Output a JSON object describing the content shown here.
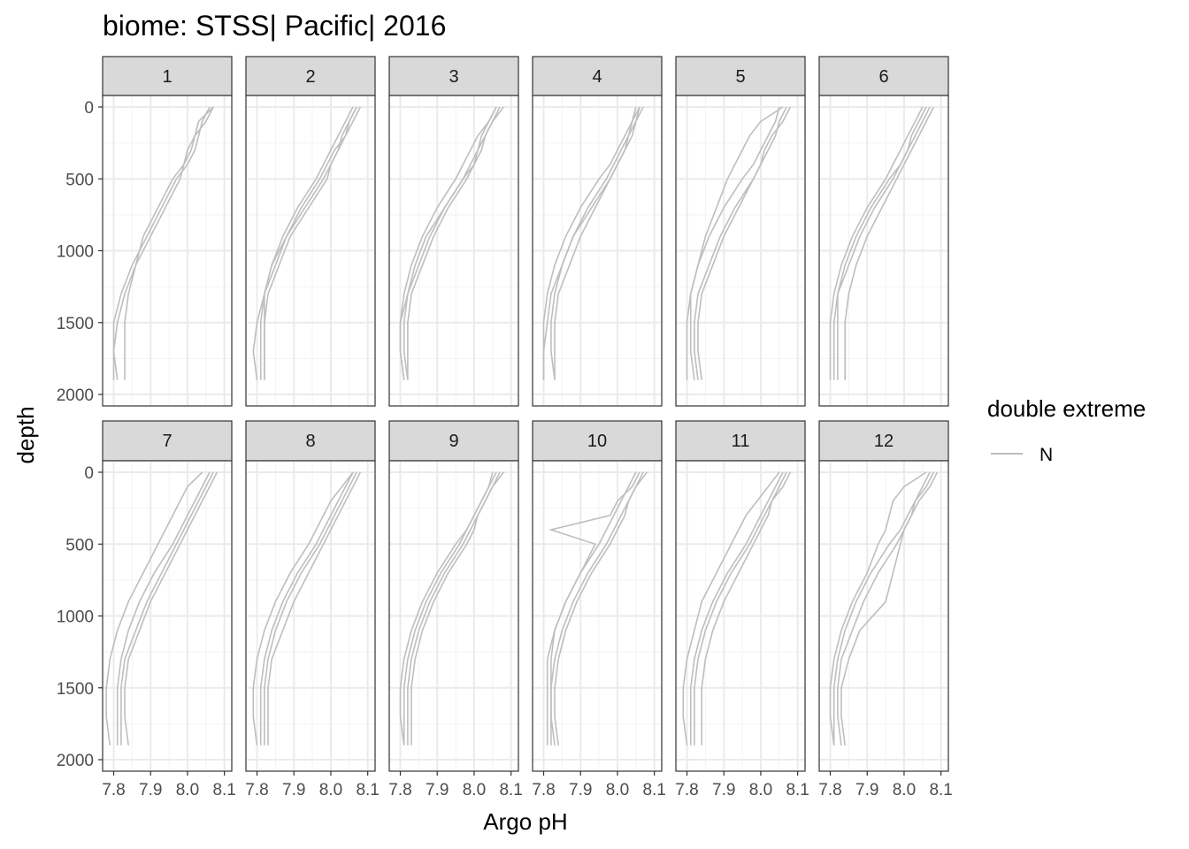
{
  "chart_data": {
    "type": "line",
    "title": "biome: STSS| Pacific| 2016",
    "xlabel": "Argo pH",
    "ylabel": "depth",
    "xlim": [
      7.77,
      8.12
    ],
    "ylim": [
      -80,
      2080
    ],
    "y_reversed": true,
    "x_ticks": [
      "7.8",
      "7.9",
      "8.0",
      "8.1"
    ],
    "x_tick_values": [
      7.8,
      7.9,
      8.0,
      8.1
    ],
    "y_ticks": [
      "0",
      "500",
      "1000",
      "1500",
      "2000"
    ],
    "y_tick_values": [
      0,
      500,
      1000,
      1500,
      2000
    ],
    "grid": true,
    "facet_by": "month",
    "facets": [
      "1",
      "2",
      "3",
      "4",
      "5",
      "6",
      "7",
      "8",
      "9",
      "10",
      "11",
      "12"
    ],
    "legend": {
      "title": "double extreme",
      "entries": [
        "N"
      ],
      "position": "right"
    },
    "colors": {
      "N": "#bebebe"
    },
    "series_note": "approximate profiles per facet; each line is one float profile",
    "profile_depths": [
      0,
      100,
      200,
      300,
      400,
      500,
      700,
      900,
      1100,
      1300,
      1500,
      1700,
      1900
    ],
    "panels": [
      {
        "facet": "1",
        "profiles": [
          [
            8.07,
            8.05,
            8.02,
            8.01,
            7.99,
            7.98,
            7.94,
            7.9,
            7.86,
            7.83,
            7.81,
            7.8,
            7.81
          ],
          [
            8.06,
            8.04,
            8.03,
            8.02,
            8.0,
            7.97,
            7.93,
            7.89,
            7.85,
            7.82,
            7.8,
            7.8,
            7.8
          ],
          [
            8.07,
            8.03,
            8.02,
            8.0,
            7.99,
            7.96,
            7.92,
            7.88,
            7.86,
            7.84,
            7.83,
            7.83,
            7.83
          ]
        ]
      },
      {
        "facet": "2",
        "profiles": [
          [
            8.07,
            8.05,
            8.04,
            8.02,
            8.0,
            7.98,
            7.93,
            7.88,
            7.85,
            7.82,
            7.8,
            7.79,
            7.8
          ],
          [
            8.08,
            8.06,
            8.04,
            8.01,
            7.99,
            7.97,
            7.92,
            7.88,
            7.84,
            7.82,
            7.81,
            7.81,
            7.81
          ],
          [
            8.06,
            8.04,
            8.02,
            8.0,
            7.98,
            7.96,
            7.91,
            7.87,
            7.84,
            7.82,
            7.82,
            7.82,
            7.82
          ],
          [
            8.07,
            8.05,
            8.03,
            8.02,
            8.0,
            7.99,
            7.94,
            7.89,
            7.86,
            7.83,
            7.82,
            7.82,
            7.82
          ]
        ]
      },
      {
        "facet": "3",
        "profiles": [
          [
            8.07,
            8.05,
            8.03,
            8.01,
            7.99,
            7.97,
            7.92,
            7.88,
            7.85,
            7.82,
            7.8,
            7.8,
            7.81
          ],
          [
            8.06,
            8.04,
            8.02,
            8.01,
            8.0,
            7.98,
            7.93,
            7.89,
            7.86,
            7.83,
            7.82,
            7.82,
            7.82
          ],
          [
            8.08,
            8.05,
            8.03,
            8.02,
            8.0,
            7.97,
            7.92,
            7.87,
            7.84,
            7.82,
            7.81,
            7.81,
            7.82
          ],
          [
            8.06,
            8.04,
            8.01,
            7.99,
            7.97,
            7.95,
            7.9,
            7.86,
            7.83,
            7.81,
            7.8,
            7.8,
            7.81
          ]
        ]
      },
      {
        "facet": "4",
        "profiles": [
          [
            8.06,
            8.04,
            8.03,
            8.01,
            7.99,
            7.97,
            7.92,
            7.88,
            7.85,
            7.82,
            7.81,
            7.8,
            7.8
          ],
          [
            8.07,
            8.05,
            8.04,
            8.02,
            8.0,
            7.98,
            7.93,
            7.88,
            7.85,
            7.83,
            7.82,
            7.82,
            7.83
          ],
          [
            8.05,
            8.04,
            8.02,
            8.0,
            7.98,
            7.95,
            7.9,
            7.86,
            7.83,
            7.81,
            7.8,
            7.8,
            7.8
          ],
          [
            8.06,
            8.05,
            8.03,
            8.02,
            8.0,
            7.98,
            7.94,
            7.9,
            7.87,
            7.84,
            7.83,
            7.83,
            7.83
          ]
        ]
      },
      {
        "facet": "5",
        "profiles": [
          [
            8.08,
            8.06,
            8.03,
            8.01,
            8.0,
            7.98,
            7.93,
            7.89,
            7.86,
            7.83,
            7.82,
            7.82,
            7.83
          ],
          [
            8.06,
            8.0,
            7.97,
            7.95,
            7.93,
            7.91,
            7.88,
            7.85,
            7.83,
            7.81,
            7.81,
            7.81,
            7.82
          ],
          [
            8.07,
            8.05,
            8.04,
            8.02,
            8.0,
            7.98,
            7.94,
            7.9,
            7.87,
            7.84,
            7.83,
            7.83,
            7.84
          ],
          [
            8.05,
            8.04,
            8.02,
            8.0,
            7.98,
            7.95,
            7.9,
            7.86,
            7.83,
            7.81,
            7.8,
            7.8,
            7.8
          ]
        ]
      },
      {
        "facet": "6",
        "profiles": [
          [
            8.07,
            8.05,
            8.03,
            8.01,
            7.99,
            7.97,
            7.92,
            7.88,
            7.85,
            7.82,
            7.81,
            7.81,
            7.81
          ],
          [
            8.05,
            8.03,
            8.01,
            7.99,
            7.97,
            7.95,
            7.9,
            7.86,
            7.83,
            7.81,
            7.8,
            7.8,
            7.8
          ],
          [
            8.08,
            8.06,
            8.04,
            8.02,
            8.0,
            7.98,
            7.94,
            7.9,
            7.87,
            7.85,
            7.84,
            7.84,
            7.84
          ],
          [
            8.06,
            8.04,
            8.02,
            8.01,
            7.99,
            7.96,
            7.91,
            7.87,
            7.84,
            7.82,
            7.82,
            7.82,
            7.82
          ]
        ]
      },
      {
        "facet": "7",
        "profiles": [
          [
            8.07,
            8.05,
            8.03,
            8.01,
            7.99,
            7.97,
            7.93,
            7.89,
            7.86,
            7.83,
            7.82,
            7.82,
            7.82
          ],
          [
            8.04,
            8.0,
            7.98,
            7.96,
            7.94,
            7.92,
            7.88,
            7.84,
            7.81,
            7.79,
            7.78,
            7.78,
            7.79
          ],
          [
            8.08,
            8.06,
            8.04,
            8.02,
            8.0,
            7.98,
            7.94,
            7.9,
            7.87,
            7.84,
            7.83,
            7.83,
            7.84
          ],
          [
            8.06,
            8.04,
            8.02,
            8.0,
            7.98,
            7.96,
            7.91,
            7.87,
            7.84,
            7.82,
            7.81,
            7.81,
            7.81
          ]
        ]
      },
      {
        "facet": "8",
        "profiles": [
          [
            8.07,
            8.05,
            8.03,
            8.01,
            7.99,
            7.97,
            7.92,
            7.88,
            7.85,
            7.83,
            7.82,
            7.82,
            7.82
          ],
          [
            8.06,
            8.03,
            8.0,
            7.98,
            7.96,
            7.94,
            7.89,
            7.85,
            7.82,
            7.8,
            7.79,
            7.79,
            7.8
          ],
          [
            8.08,
            8.06,
            8.04,
            8.02,
            8.0,
            7.98,
            7.94,
            7.9,
            7.87,
            7.84,
            7.83,
            7.83,
            7.83
          ],
          [
            8.06,
            8.04,
            8.02,
            8.0,
            7.98,
            7.96,
            7.91,
            7.87,
            7.84,
            7.82,
            7.81,
            7.81,
            7.81
          ]
        ]
      },
      {
        "facet": "9",
        "profiles": [
          [
            8.07,
            8.05,
            8.03,
            8.01,
            7.99,
            7.97,
            7.92,
            7.88,
            7.85,
            7.83,
            7.82,
            7.82,
            7.82
          ],
          [
            8.06,
            8.04,
            8.02,
            8.0,
            7.98,
            7.96,
            7.91,
            7.87,
            7.84,
            7.82,
            7.81,
            7.81,
            7.81
          ],
          [
            8.08,
            8.05,
            8.03,
            8.01,
            8.0,
            7.98,
            7.93,
            7.89,
            7.86,
            7.84,
            7.83,
            7.83,
            7.83
          ],
          [
            8.05,
            8.04,
            8.02,
            8.0,
            7.98,
            7.95,
            7.9,
            7.86,
            7.83,
            7.81,
            7.8,
            7.8,
            7.81
          ]
        ]
      },
      {
        "facet": "10",
        "profiles": [
          [
            8.08,
            8.05,
            8.03,
            8.01,
            7.99,
            7.97,
            7.92,
            7.88,
            7.85,
            7.83,
            7.82,
            7.82,
            7.83
          ],
          [
            8.06,
            8.04,
            8.0,
            7.98,
            7.82,
            7.94,
            7.9,
            7.86,
            7.83,
            7.82,
            7.82,
            7.82,
            7.82
          ],
          [
            8.07,
            8.05,
            8.03,
            8.02,
            8.0,
            7.98,
            7.93,
            7.89,
            7.86,
            7.84,
            7.83,
            7.83,
            7.84
          ],
          [
            8.05,
            8.03,
            8.01,
            7.99,
            7.97,
            7.95,
            7.9,
            7.86,
            7.83,
            7.81,
            7.81,
            7.81,
            7.81
          ]
        ]
      },
      {
        "facet": "11",
        "profiles": [
          [
            8.08,
            8.06,
            8.03,
            8.01,
            7.99,
            7.97,
            7.92,
            7.88,
            7.85,
            7.83,
            7.82,
            7.82,
            7.82
          ],
          [
            8.05,
            8.02,
            7.99,
            7.96,
            7.94,
            7.92,
            7.88,
            7.84,
            7.82,
            7.8,
            7.79,
            7.79,
            7.8
          ],
          [
            8.07,
            8.05,
            8.03,
            8.02,
            8.0,
            7.98,
            7.94,
            7.9,
            7.87,
            7.85,
            7.84,
            7.84,
            7.84
          ],
          [
            8.06,
            8.04,
            8.02,
            8.0,
            7.98,
            7.96,
            7.91,
            7.87,
            7.84,
            7.82,
            7.81,
            7.81,
            7.81
          ]
        ]
      },
      {
        "facet": "12",
        "profiles": [
          [
            8.09,
            8.07,
            8.04,
            8.02,
            8.0,
            7.98,
            7.93,
            7.89,
            7.86,
            7.83,
            7.82,
            7.82,
            7.83
          ],
          [
            8.06,
            8.0,
            7.97,
            7.96,
            7.95,
            7.93,
            7.9,
            7.86,
            7.83,
            7.81,
            7.8,
            7.8,
            7.81
          ],
          [
            8.08,
            8.06,
            8.03,
            8.02,
            8.0,
            7.99,
            7.97,
            7.95,
            7.88,
            7.85,
            7.83,
            7.83,
            7.84
          ],
          [
            8.07,
            8.05,
            8.03,
            8.01,
            7.99,
            7.96,
            7.91,
            7.87,
            7.84,
            7.82,
            7.81,
            7.81,
            7.81
          ]
        ]
      }
    ]
  }
}
